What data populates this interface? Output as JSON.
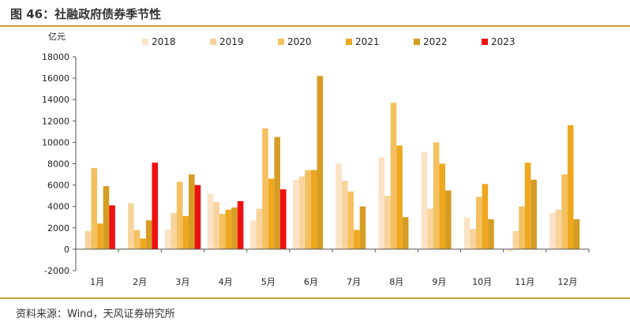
{
  "page": {
    "title": "图 46：社融政府债券季节性",
    "source": "资料来源：Wind，天风证券研究所"
  },
  "chart_data": {
    "type": "bar",
    "unit_label": "亿元",
    "categories": [
      "1月",
      "2月",
      "3月",
      "4月",
      "5月",
      "6月",
      "7月",
      "8月",
      "9月",
      "10月",
      "11月",
      "12月"
    ],
    "ylim": [
      -2000,
      18000
    ],
    "yticks": [
      -2000,
      0,
      2000,
      4000,
      6000,
      8000,
      10000,
      12000,
      14000,
      16000,
      18000
    ],
    "grid": false,
    "legend_position": "top",
    "series": [
      {
        "name": "2018",
        "color": "#fbe3c6",
        "values": [
          0,
          100,
          1800,
          5200,
          2700,
          6500,
          8000,
          8600,
          9100,
          3000,
          -200,
          3400
        ]
      },
      {
        "name": "2019",
        "color": "#f8d49c",
        "values": [
          1700,
          4300,
          3400,
          4400,
          3800,
          6800,
          6400,
          5000,
          3800,
          1900,
          1700,
          3700
        ]
      },
      {
        "name": "2020",
        "color": "#f5c060",
        "values": [
          7600,
          1800,
          6300,
          3300,
          11300,
          7400,
          5400,
          13700,
          10000,
          4900,
          4000,
          7000
        ]
      },
      {
        "name": "2021",
        "color": "#eea820",
        "values": [
          2400,
          1000,
          3100,
          3700,
          6600,
          7400,
          1800,
          9700,
          8000,
          6100,
          8100,
          11600
        ]
      },
      {
        "name": "2022",
        "color": "#d59d24",
        "values": [
          5900,
          2700,
          7000,
          3900,
          10500,
          16200,
          4000,
          3000,
          5500,
          2800,
          6500,
          2800
        ]
      },
      {
        "name": "2023",
        "color": "#ee1111",
        "values": [
          4100,
          8100,
          6000,
          4500,
          5600,
          null,
          null,
          null,
          null,
          null,
          null,
          null
        ]
      }
    ]
  }
}
